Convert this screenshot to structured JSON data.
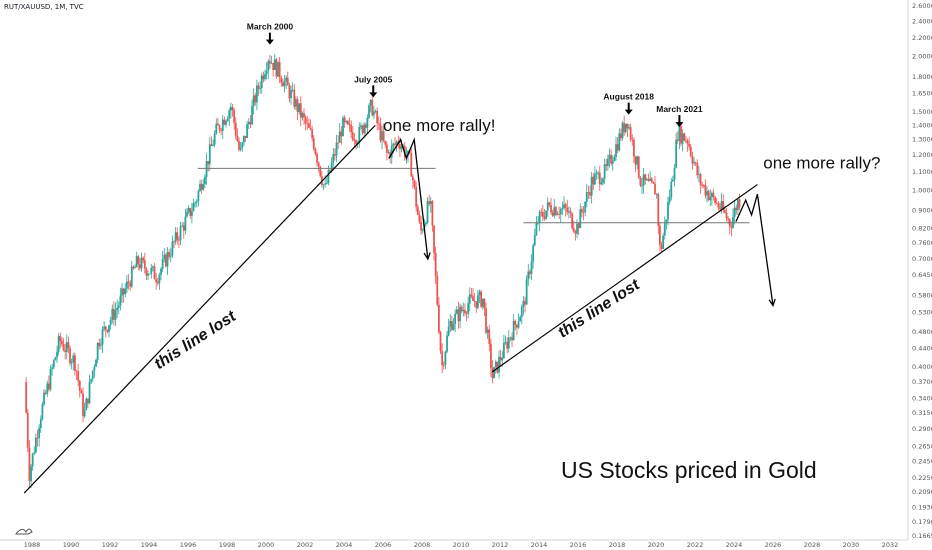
{
  "chart_data": {
    "type": "candlestick",
    "symbol": "RUT/XAUUSD, 1M, TVC",
    "title": "US Stocks priced in Gold",
    "y_scale": "log",
    "ylim": [
      0.1665,
      2.6
    ],
    "y_ticks": [
      "2.6000",
      "2.4000",
      "2.2000",
      "2.0000",
      "1.8000",
      "1.6500",
      "1.5000",
      "1.4000",
      "1.3000",
      "1.2000",
      "1.1000",
      "1.0000",
      "0.9000",
      "0.8200",
      "0.7600",
      "0.7000",
      "0.6450",
      "0.5800",
      "0.5300",
      "0.4800",
      "0.4400",
      "0.4000",
      "0.3700",
      "0.3400",
      "0.3150",
      "0.2900",
      "0.2650",
      "0.2450",
      "0.2250",
      "0.2090",
      "0.1930",
      "0.1790",
      "0.1665"
    ],
    "x_ticks": [
      "1988",
      "1990",
      "1992",
      "1994",
      "1996",
      "1998",
      "2000",
      "2002",
      "2004",
      "2006",
      "2008",
      "2010",
      "2012",
      "2014",
      "2016",
      "2018",
      "2020",
      "2022",
      "2024",
      "2026",
      "2028",
      "2030",
      "2032"
    ],
    "up_color": "#26a69a",
    "down_color": "#ef5350",
    "series_points": [
      {
        "date": 1987.7,
        "value": 0.37
      },
      {
        "date": 1987.95,
        "value": 0.23
      },
      {
        "date": 1988.5,
        "value": 0.31
      },
      {
        "date": 1989.5,
        "value": 0.46
      },
      {
        "date": 1990.3,
        "value": 0.41
      },
      {
        "date": 1990.75,
        "value": 0.31
      },
      {
        "date": 1991.5,
        "value": 0.46
      },
      {
        "date": 1992.5,
        "value": 0.55
      },
      {
        "date": 1993.5,
        "value": 0.69
      },
      {
        "date": 1994.5,
        "value": 0.64
      },
      {
        "date": 1995.5,
        "value": 0.78
      },
      {
        "date": 1996.5,
        "value": 0.95
      },
      {
        "date": 1997.5,
        "value": 1.35
      },
      {
        "date": 1998.3,
        "value": 1.55
      },
      {
        "date": 1998.75,
        "value": 1.2
      },
      {
        "date": 1999.5,
        "value": 1.6
      },
      {
        "date": 2000.2,
        "value": 2.0
      },
      {
        "date": 2000.75,
        "value": 1.85
      },
      {
        "date": 2001.5,
        "value": 1.6
      },
      {
        "date": 2002.5,
        "value": 1.3
      },
      {
        "date": 2003.1,
        "value": 1.0
      },
      {
        "date": 2004.0,
        "value": 1.4
      },
      {
        "date": 2004.8,
        "value": 1.32
      },
      {
        "date": 2005.5,
        "value": 1.55
      },
      {
        "date": 2006.3,
        "value": 1.2
      },
      {
        "date": 2006.9,
        "value": 1.3
      },
      {
        "date": 2007.5,
        "value": 1.15
      },
      {
        "date": 2008.0,
        "value": 0.8
      },
      {
        "date": 2008.5,
        "value": 0.95
      },
      {
        "date": 2009.1,
        "value": 0.4
      },
      {
        "date": 2009.5,
        "value": 0.5
      },
      {
        "date": 2010.5,
        "value": 0.56
      },
      {
        "date": 2011.2,
        "value": 0.57
      },
      {
        "date": 2011.7,
        "value": 0.38
      },
      {
        "date": 2012.5,
        "value": 0.46
      },
      {
        "date": 2013.3,
        "value": 0.55
      },
      {
        "date": 2014.0,
        "value": 0.85
      },
      {
        "date": 2014.6,
        "value": 0.92
      },
      {
        "date": 2015.5,
        "value": 0.9
      },
      {
        "date": 2016.0,
        "value": 0.82
      },
      {
        "date": 2016.8,
        "value": 1.05
      },
      {
        "date": 2017.5,
        "value": 1.1
      },
      {
        "date": 2018.6,
        "value": 1.45
      },
      {
        "date": 2019.3,
        "value": 1.05
      },
      {
        "date": 2020.1,
        "value": 1.0
      },
      {
        "date": 2020.3,
        "value": 0.72
      },
      {
        "date": 2020.9,
        "value": 1.05
      },
      {
        "date": 2021.2,
        "value": 1.35
      },
      {
        "date": 2021.7,
        "value": 1.3
      },
      {
        "date": 2022.3,
        "value": 1.05
      },
      {
        "date": 2022.8,
        "value": 0.98
      },
      {
        "date": 2023.5,
        "value": 0.9
      },
      {
        "date": 2023.9,
        "value": 0.84
      },
      {
        "date": 2024.3,
        "value": 0.95
      }
    ],
    "horizontal_lines": [
      {
        "value": 1.12,
        "from": 1996.5,
        "to": 2008.7
      },
      {
        "value": 0.845,
        "from": 2013.2,
        "to": 2024.8
      }
    ],
    "trend_lines": [
      {
        "from": [
          1987.6,
          0.208
        ],
        "to": [
          2005.6,
          1.4
        ]
      },
      {
        "from": [
          2011.6,
          0.39
        ],
        "to": [
          2025.2,
          1.03
        ]
      }
    ],
    "annotations": [
      {
        "text": "March 2000",
        "date": 2000.2,
        "value": 2.3,
        "arrow": true
      },
      {
        "text": "July 2005",
        "date": 2005.5,
        "value": 1.75,
        "arrow": true
      },
      {
        "text": "August 2018",
        "date": 2018.6,
        "value": 1.6,
        "arrow": true
      },
      {
        "text": "March 2021",
        "date": 2021.2,
        "value": 1.5,
        "arrow": true
      },
      {
        "text": "one more rally!",
        "date": 2006.0,
        "value": 1.36
      },
      {
        "text": "one more rally?",
        "date": 2025.5,
        "value": 1.12
      },
      {
        "text": "this line lost",
        "date": 1996.5,
        "value": 0.45
      },
      {
        "text": "this line lost",
        "date": 2017.2,
        "value": 0.53
      }
    ],
    "projections": [
      {
        "points": [
          [
            2006.3,
            1.18
          ],
          [
            2006.9,
            1.3
          ],
          [
            2007.2,
            1.18
          ],
          [
            2007.6,
            1.3
          ],
          [
            2008.3,
            0.7
          ]
        ]
      },
      {
        "points": [
          [
            2024.1,
            0.85
          ],
          [
            2024.6,
            0.95
          ],
          [
            2024.9,
            0.88
          ],
          [
            2025.2,
            0.98
          ],
          [
            2026.0,
            0.55
          ]
        ]
      }
    ]
  }
}
